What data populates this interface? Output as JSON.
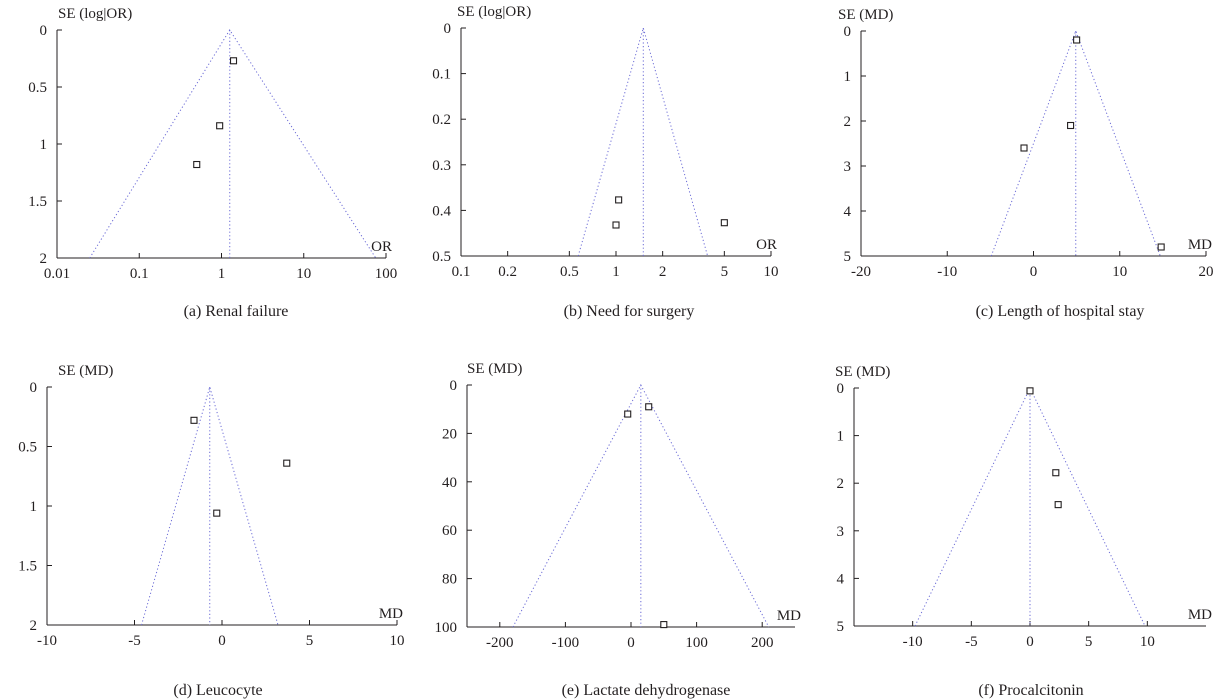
{
  "chart_data": [
    {
      "type": "scatter",
      "caption": "(a) Renal failure",
      "ylabel": "SE (log|OR)",
      "xlabel": "OR",
      "x_scale": "log",
      "xlim": [
        0.01,
        100
      ],
      "ylim": [
        0,
        2
      ],
      "x_ticks": [
        0.01,
        0.1,
        1,
        10,
        100
      ],
      "x_tick_labels": [
        "0.01",
        "0.1",
        "1",
        "10",
        "100"
      ],
      "y_ticks": [
        0,
        0.5,
        1,
        1.5,
        2
      ],
      "y_tick_labels": [
        "0",
        "0.5",
        "1",
        "1.5",
        "2"
      ],
      "pooled_estimate": 1.26,
      "funnel_bottom": [
        0.025,
        75
      ],
      "points": [
        {
          "x": 1.4,
          "y": 0.27
        },
        {
          "x": 0.95,
          "y": 0.84
        },
        {
          "x": 0.5,
          "y": 1.18
        }
      ]
    },
    {
      "type": "scatter",
      "caption": "(b) Need for surgery",
      "ylabel": "SE (log|OR)",
      "xlabel": "OR",
      "x_scale": "log",
      "xlim": [
        0.1,
        10
      ],
      "ylim": [
        0,
        0.5
      ],
      "x_ticks": [
        0.1,
        0.2,
        0.5,
        1,
        2,
        5,
        10
      ],
      "x_tick_labels": [
        "0.1",
        "0.2",
        "0.5",
        "1",
        "2",
        "5",
        "10"
      ],
      "y_ticks": [
        0,
        0.1,
        0.2,
        0.3,
        0.4,
        0.5
      ],
      "y_tick_labels": [
        "0",
        "0.1",
        "0.2",
        "0.3",
        "0.4",
        "0.5"
      ],
      "pooled_estimate": 1.5,
      "funnel_bottom": [
        0.57,
        3.9
      ],
      "points": [
        {
          "x": 1.04,
          "y": 0.377
        },
        {
          "x": 1.0,
          "y": 0.432
        },
        {
          "x": 5.0,
          "y": 0.427
        }
      ]
    },
    {
      "type": "scatter",
      "caption": "(c) Length of hospital stay",
      "ylabel": "SE (MD)",
      "xlabel": "MD",
      "x_scale": "linear",
      "xlim": [
        -20,
        20
      ],
      "ylim": [
        0,
        5
      ],
      "x_ticks": [
        -20,
        -10,
        0,
        10,
        20
      ],
      "x_tick_labels": [
        "-20",
        "-10",
        "0",
        "10",
        "20"
      ],
      "y_ticks": [
        0,
        1,
        2,
        3,
        4,
        5
      ],
      "y_tick_labels": [
        "0",
        "1",
        "2",
        "3",
        "4",
        "5"
      ],
      "pooled_estimate": 4.9,
      "funnel_bottom": [
        -4.9,
        14.7
      ],
      "points": [
        {
          "x": 5.0,
          "y": 0.2
        },
        {
          "x": 4.3,
          "y": 2.1
        },
        {
          "x": -1.1,
          "y": 2.6
        },
        {
          "x": 14.8,
          "y": 4.8
        }
      ]
    },
    {
      "type": "scatter",
      "caption": "(d) Leucocyte",
      "ylabel": "SE (MD)",
      "xlabel": "MD",
      "x_scale": "linear",
      "xlim": [
        -10,
        10
      ],
      "ylim": [
        0,
        2
      ],
      "x_ticks": [
        -10,
        -5,
        0,
        5,
        10
      ],
      "x_tick_labels": [
        "-10",
        "-5",
        "0",
        "5",
        "10"
      ],
      "y_ticks": [
        0,
        0.5,
        1,
        1.5,
        2
      ],
      "y_tick_labels": [
        "0",
        "0.5",
        "1",
        "1.5",
        "2"
      ],
      "pooled_estimate": -0.7,
      "funnel_bottom": [
        -4.6,
        3.2
      ],
      "points": [
        {
          "x": -1.6,
          "y": 0.28
        },
        {
          "x": 3.7,
          "y": 0.64
        },
        {
          "x": -0.3,
          "y": 1.06
        }
      ]
    },
    {
      "type": "scatter",
      "caption": "(e) Lactate dehydrogenase",
      "ylabel": "SE (MD)",
      "xlabel": "MD",
      "x_scale": "linear",
      "xlim": [
        -250,
        250
      ],
      "ylim": [
        0,
        100
      ],
      "x_ticks": [
        -200,
        -100,
        0,
        100,
        200
      ],
      "x_tick_labels": [
        "-200",
        "-100",
        "0",
        "100",
        "200"
      ],
      "y_ticks": [
        0,
        20,
        40,
        60,
        80,
        100
      ],
      "y_tick_labels": [
        "0",
        "20",
        "40",
        "60",
        "80",
        "100"
      ],
      "pooled_estimate": 15,
      "funnel_bottom": [
        -180,
        210
      ],
      "points": [
        {
          "x": -5,
          "y": 12
        },
        {
          "x": 27,
          "y": 9
        },
        {
          "x": 50,
          "y": 99
        }
      ]
    },
    {
      "type": "scatter",
      "caption": "(f) Procalcitonin",
      "ylabel": "SE (MD)",
      "xlabel": "MD",
      "x_scale": "linear",
      "xlim": [
        -15,
        15
      ],
      "ylim": [
        0,
        5
      ],
      "x_ticks": [
        -10,
        -5,
        0,
        5,
        10
      ],
      "x_tick_labels": [
        "-10",
        "-5",
        "0",
        "5",
        "10"
      ],
      "y_ticks": [
        0,
        1,
        2,
        3,
        4,
        5
      ],
      "y_tick_labels": [
        "0",
        "1",
        "2",
        "3",
        "4",
        "5"
      ],
      "pooled_estimate": 0,
      "funnel_bottom": [
        -9.8,
        9.8
      ],
      "points": [
        {
          "x": 0,
          "y": 0.06
        },
        {
          "x": 2.2,
          "y": 1.78
        },
        {
          "x": 2.4,
          "y": 2.45
        }
      ]
    }
  ]
}
